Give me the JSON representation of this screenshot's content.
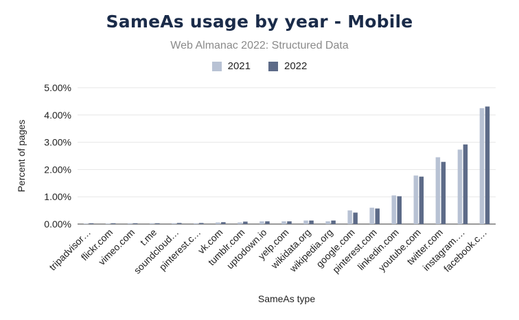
{
  "chart_data": {
    "type": "bar",
    "title": "SameAs usage by year - Mobile",
    "subtitle": "Web Almanac 2022: Structured Data",
    "xlabel": "SameAs type",
    "ylabel": "Percent of pages",
    "ylim": [
      0,
      5
    ],
    "yticks": [
      "0.00%",
      "1.00%",
      "2.00%",
      "3.00%",
      "4.00%",
      "5.00%"
    ],
    "grid": true,
    "legend_position": "top-center",
    "categories": [
      "tripadvisor…",
      "flickr.com",
      "vimeo.com",
      "t.me",
      "soundcloud…",
      "pinterest.c…",
      "vk.com",
      "tumblr.com",
      "uptodown.io",
      "yelp.com",
      "wikidata.org",
      "wikipedia.org",
      "google.com",
      "pinterest.com",
      "linkedin.com",
      "youtube.com",
      "twitter.com",
      "instagram.…",
      "facebook.c…"
    ],
    "series": [
      {
        "name": "2021",
        "color": "#b8c2d4",
        "values": [
          0.02,
          0.02,
          0.03,
          0.03,
          0.03,
          0.03,
          0.06,
          0.06,
          0.1,
          0.1,
          0.13,
          0.1,
          0.5,
          0.6,
          1.05,
          1.78,
          2.45,
          2.73,
          4.25
        ]
      },
      {
        "name": "2022",
        "color": "#5d6b88",
        "values": [
          0.03,
          0.03,
          0.03,
          0.03,
          0.04,
          0.04,
          0.07,
          0.09,
          0.1,
          0.1,
          0.13,
          0.13,
          0.42,
          0.57,
          1.02,
          1.74,
          2.28,
          2.92,
          4.31
        ]
      }
    ]
  }
}
